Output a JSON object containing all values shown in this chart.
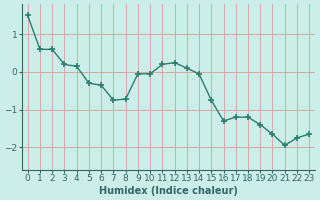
{
  "x": [
    0,
    1,
    2,
    3,
    4,
    5,
    6,
    7,
    8,
    9,
    10,
    11,
    12,
    13,
    14,
    15,
    16,
    17,
    18,
    19,
    20,
    21,
    22,
    23
  ],
  "y": [
    1.5,
    0.6,
    0.6,
    0.2,
    0.15,
    -0.3,
    -0.35,
    -0.75,
    -0.72,
    -0.05,
    -0.05,
    0.2,
    0.25,
    0.1,
    -0.05,
    -0.75,
    -1.3,
    -1.2,
    -1.2,
    -1.4,
    -1.65,
    -1.95,
    -1.75,
    -1.65
  ],
  "line_color": "#2e7d6e",
  "marker": "+",
  "marker_size": 5,
  "bg_color": "#cceee8",
  "grid_color": "#d8a8a8",
  "axis_color": "#336666",
  "tick_color": "#336666",
  "xlabel": "Humidex (Indice chaleur)",
  "xlim": [
    -0.5,
    23.5
  ],
  "ylim": [
    -2.6,
    1.8
  ],
  "yticks": [
    -2,
    -1,
    0,
    1
  ],
  "xticks": [
    0,
    1,
    2,
    3,
    4,
    5,
    6,
    7,
    8,
    9,
    10,
    11,
    12,
    13,
    14,
    15,
    16,
    17,
    18,
    19,
    20,
    21,
    22,
    23
  ],
  "label_fontsize": 7,
  "tick_fontsize": 6.5
}
